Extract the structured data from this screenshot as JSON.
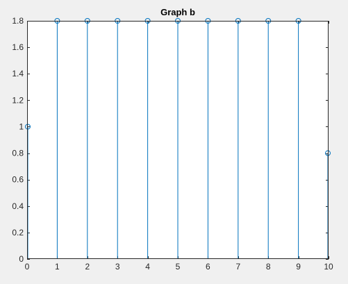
{
  "chart_data": {
    "type": "stem",
    "title": "Graph b",
    "xlabel": "",
    "ylabel": "",
    "xlim": [
      0,
      10
    ],
    "ylim": [
      0,
      1.8
    ],
    "x_ticks": [
      "0",
      "1",
      "2",
      "3",
      "4",
      "5",
      "6",
      "7",
      "8",
      "9",
      "10"
    ],
    "y_ticks": [
      "0",
      "0.2",
      "0.4",
      "0.6",
      "0.8",
      "1",
      "1.2",
      "1.4",
      "1.6",
      "1.8"
    ],
    "x": [
      0,
      1,
      2,
      3,
      4,
      5,
      6,
      7,
      8,
      9,
      10
    ],
    "y": [
      1,
      1.8,
      1.8,
      1.8,
      1.8,
      1.8,
      1.8,
      1.8,
      1.8,
      1.8,
      0.8
    ],
    "grid": false,
    "colors": {
      "stem": "#0072bd",
      "figure_background": "#f0f0f0",
      "axes_background": "#ffffff",
      "axes_edge": "#262626"
    }
  }
}
